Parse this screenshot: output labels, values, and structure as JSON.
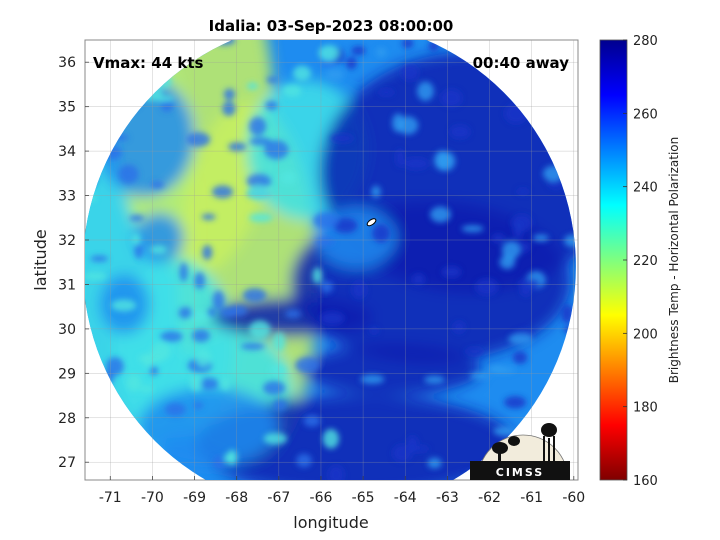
{
  "chart_data": {
    "type": "heatmap",
    "title": "Idalia: 03-Sep-2023 08:00:00",
    "xlabel": "longitude",
    "ylabel": "latitude",
    "xlim": [
      -71.6,
      -59.9
    ],
    "ylim": [
      26.6,
      36.5
    ],
    "x_ticks": [
      "-71",
      "-70",
      "-69",
      "-68",
      "-67",
      "-66",
      "-65",
      "-64",
      "-63",
      "-62",
      "-61",
      "-60"
    ],
    "y_ticks": [
      "27",
      "28",
      "29",
      "30",
      "31",
      "32",
      "33",
      "34",
      "35",
      "36"
    ],
    "grid": true,
    "colorbar": {
      "label": "Brightness Temp - Horizontal Polarization",
      "range": [
        160,
        280
      ],
      "ticks": [
        "280",
        "260",
        "240",
        "220",
        "200",
        "180",
        "160"
      ],
      "colormap": "jet"
    },
    "annotations": {
      "vmax": "Vmax: 44 kts",
      "time_away": "00:40 away"
    },
    "swath": {
      "center_lon": -65.8,
      "center_lat": 31.4,
      "radius_deg": 5.85,
      "storm_center_lon": -64.8,
      "storm_center_lat": 32.4
    },
    "logo_text": "CIMSS"
  },
  "colors": {
    "cold": "#0a1fb0",
    "mid": "#1e8cf0",
    "warm": "#3fe0e8",
    "warmest": "#c8f060"
  }
}
